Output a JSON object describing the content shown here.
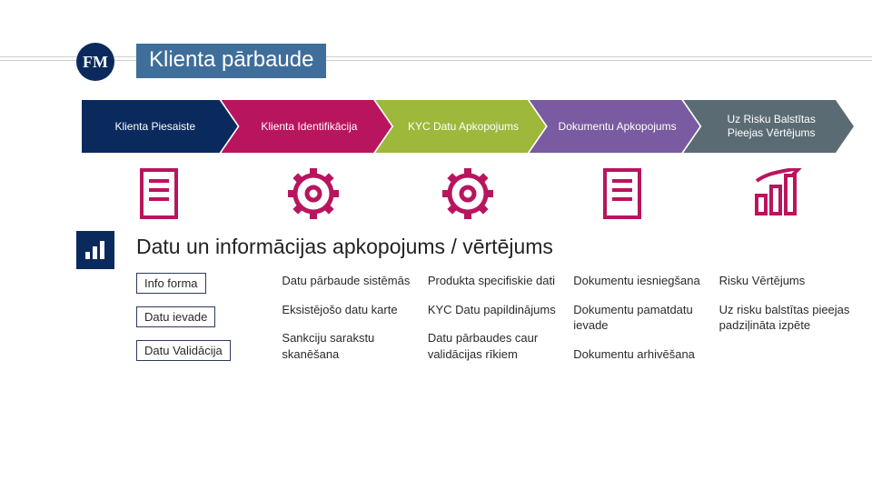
{
  "title": "Klienta pārbaude",
  "logo_text": "FM",
  "arrows": [
    {
      "label": "Klienta Piesaiste",
      "color": "#0a2a5e",
      "icon": "doc"
    },
    {
      "label": "Klienta Identifikācija",
      "color": "#b9155e",
      "icon": "gear"
    },
    {
      "label": "KYC Datu Apkopojums",
      "color": "#9db83a",
      "icon": "gear"
    },
    {
      "label": "Dokumentu Apkopojums",
      "color": "#7a5aa0",
      "icon": "doc"
    },
    {
      "label": "Uz Risku Balstītas Pieejas Vērtējums",
      "color": "#5b6b74",
      "icon": "chart"
    }
  ],
  "icon_color": "#b9155e",
  "section2_title": "Datu un informācijas apkopojums / vērtējums",
  "columns": [
    {
      "items": [
        {
          "text": "Info forma",
          "boxed": true
        },
        {
          "text": "Datu ievade",
          "boxed": true
        },
        {
          "text": "Datu Validācija",
          "boxed": true
        }
      ]
    },
    {
      "items": [
        {
          "text": "Datu pārbaude sistēmās",
          "boxed": false
        },
        {
          "text": "Eksistējošo datu karte",
          "boxed": false
        },
        {
          "text": "Sankciju sarakstu skanēšana",
          "boxed": false
        }
      ]
    },
    {
      "items": [
        {
          "text": "Produkta specifiskie dati",
          "boxed": false
        },
        {
          "text": "KYC Datu papildinājums",
          "boxed": false
        },
        {
          "text": "Datu pārbaudes caur validācijas rīkiem",
          "boxed": false
        }
      ]
    },
    {
      "items": [
        {
          "text": "Dokumentu iesniegšana",
          "boxed": false
        },
        {
          "text": "Dokumentu pamatdatu ievade",
          "boxed": false
        },
        {
          "text": "Dokumentu arhivēšana",
          "boxed": false
        }
      ]
    },
    {
      "items": [
        {
          "text": "Risku Vērtējums",
          "boxed": false
        },
        {
          "text": "Uz risku balstītas pieejas padziļināta izpēte",
          "boxed": false
        }
      ]
    }
  ],
  "style": {
    "background": "#ffffff",
    "title_bg": "#3f6e9a",
    "logo_bg": "#0a2a5e",
    "box_border": "#2a3a5e",
    "rule_color": "#cfcfcf",
    "title_fontsize": 24,
    "arrow_fontsize": 12,
    "body_fontsize": 13
  }
}
